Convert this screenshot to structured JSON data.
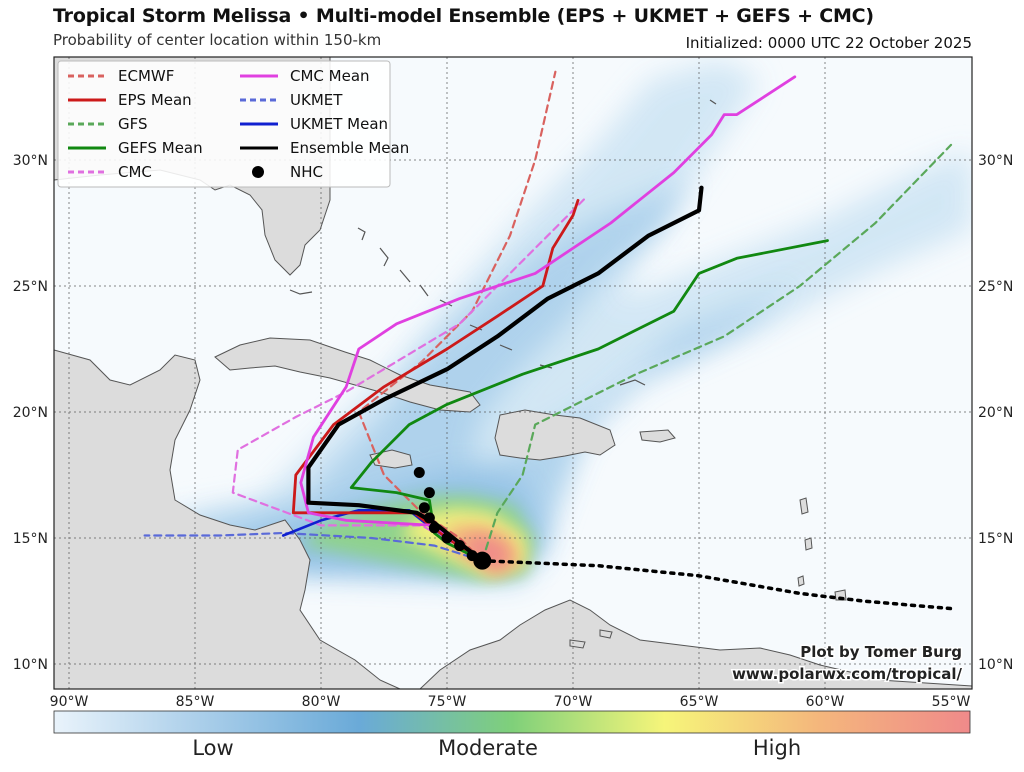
{
  "title": "Tropical Storm Melissa • Multi-model Ensemble (EPS + UKMET + GEFS + CMC)",
  "subtitle": "Probability of center location within 150-km",
  "initialized": "Initialized: 0000 UTC 22 October 2025",
  "credit": {
    "line1": "Plot by Tomer Burg",
    "line2": "www.polarwx.com/tropical/"
  },
  "lon_ticks": [
    "90°W",
    "85°W",
    "80°W",
    "75°W",
    "70°W",
    "65°W",
    "60°W",
    "55°W"
  ],
  "lat_ticks": [
    "30°N",
    "25°N",
    "20°N",
    "15°N",
    "10°N"
  ],
  "colorbar": {
    "labels": [
      "Low",
      "Moderate",
      "High"
    ],
    "stops": [
      "#e9f3fb",
      "#a8cde9",
      "#6aaad8",
      "#7fd07a",
      "#f6f57a",
      "#f4b77c",
      "#f08a8a"
    ]
  },
  "colors": {
    "ocean": "#f6fafd",
    "land": "#dcdcdc",
    "coast": "#555555",
    "prob_low": "#b7d8ef",
    "prob_mid": "#8fd18a",
    "prob_high": "#f3f07c",
    "prob_max": "#f19a8a"
  },
  "legend": [
    {
      "label": "ECMWF",
      "color": "#d9625f",
      "style": "dashed"
    },
    {
      "label": "CMC Mean",
      "color": "#e040e0",
      "style": "solid"
    },
    {
      "label": "EPS Mean",
      "color": "#cc1a1a",
      "style": "solid"
    },
    {
      "label": "UKMET",
      "color": "#5a6ad8",
      "style": "dashed"
    },
    {
      "label": "GFS",
      "color": "#5aa85a",
      "style": "dashed"
    },
    {
      "label": "UKMET Mean",
      "color": "#1020d0",
      "style": "solid"
    },
    {
      "label": "GEFS Mean",
      "color": "#118811",
      "style": "solid"
    },
    {
      "label": "Ensemble Mean",
      "color": "#000000",
      "style": "solid"
    },
    {
      "label": "CMC",
      "color": "#e070e0",
      "style": "dashed"
    },
    {
      "label": "NHC",
      "color": "#000000",
      "style": "dot"
    }
  ],
  "tracks": [
    {
      "name": "ECMWF",
      "color": "#d9625f",
      "style": "dashed",
      "width": 2.2,
      "points": [
        [
          -73.6,
          14.1
        ],
        [
          -74.5,
          15.0
        ],
        [
          -76.0,
          16.0
        ],
        [
          -77.5,
          17.5
        ],
        [
          -78.5,
          20.0
        ],
        [
          -76.0,
          22.0
        ],
        [
          -74.0,
          24.0
        ],
        [
          -72.5,
          27.0
        ],
        [
          -71.5,
          30.0
        ],
        [
          -70.7,
          33.5
        ]
      ]
    },
    {
      "name": "GFS",
      "color": "#5aa85a",
      "style": "dashed",
      "width": 2.2,
      "points": [
        [
          -73.6,
          14.1
        ],
        [
          -73.0,
          16.0
        ],
        [
          -72.0,
          17.5
        ],
        [
          -71.5,
          19.5
        ],
        [
          -69.5,
          20.5
        ],
        [
          -67.5,
          21.5
        ],
        [
          -64.0,
          23.0
        ],
        [
          -61.0,
          25.0
        ],
        [
          -58.0,
          27.5
        ],
        [
          -55.0,
          30.6
        ]
      ]
    },
    {
      "name": "CMC",
      "color": "#e070e0",
      "style": "dashed",
      "width": 2.2,
      "points": [
        [
          -73.6,
          14.1
        ],
        [
          -76.0,
          15.5
        ],
        [
          -80.0,
          15.5
        ],
        [
          -83.5,
          16.8
        ],
        [
          -83.3,
          18.5
        ],
        [
          -81.0,
          19.8
        ],
        [
          -79.0,
          20.8
        ],
        [
          -77.0,
          22.0
        ],
        [
          -74.5,
          23.5
        ],
        [
          -72.0,
          26.0
        ],
        [
          -69.5,
          28.5
        ]
      ]
    },
    {
      "name": "UKMET",
      "color": "#5a6ad8",
      "style": "dashed",
      "width": 2.2,
      "points": [
        [
          -73.6,
          14.1
        ],
        [
          -75.5,
          14.7
        ],
        [
          -78.0,
          15.0
        ],
        [
          -81.5,
          15.2
        ],
        [
          -84.0,
          15.1
        ],
        [
          -87.0,
          15.1
        ]
      ]
    },
    {
      "name": "UKMET Mean",
      "color": "#1020d0",
      "style": "solid",
      "width": 2.6,
      "points": [
        [
          -73.6,
          14.1
        ],
        [
          -75.0,
          15.0
        ],
        [
          -76.0,
          15.7
        ],
        [
          -76.5,
          16.1
        ],
        [
          -78.5,
          16.1
        ],
        [
          -80.0,
          15.7
        ],
        [
          -81.5,
          15.1
        ]
      ]
    },
    {
      "name": "EPS Mean",
      "color": "#cc1a1a",
      "style": "solid",
      "width": 2.8,
      "points": [
        [
          -73.6,
          14.1
        ],
        [
          -75.0,
          15.0
        ],
        [
          -76.3,
          16.0
        ],
        [
          -79.5,
          16.0
        ],
        [
          -81.1,
          16.0
        ],
        [
          -81.0,
          17.5
        ],
        [
          -79.5,
          19.5
        ],
        [
          -77.5,
          21.0
        ],
        [
          -75.0,
          22.5
        ],
        [
          -73.0,
          23.8
        ],
        [
          -71.2,
          25.0
        ],
        [
          -70.8,
          26.5
        ],
        [
          -70.0,
          27.8
        ],
        [
          -69.8,
          28.4
        ]
      ]
    },
    {
      "name": "GEFS Mean",
      "color": "#118811",
      "style": "solid",
      "width": 2.8,
      "points": [
        [
          -73.6,
          14.1
        ],
        [
          -75.0,
          14.8
        ],
        [
          -75.5,
          15.2
        ],
        [
          -75.7,
          16.5
        ],
        [
          -77.0,
          16.8
        ],
        [
          -78.8,
          17.0
        ],
        [
          -78.0,
          18.0
        ],
        [
          -76.5,
          19.5
        ],
        [
          -75.0,
          20.3
        ],
        [
          -72.0,
          21.5
        ],
        [
          -69.0,
          22.5
        ],
        [
          -66.0,
          24.0
        ],
        [
          -65.0,
          25.5
        ],
        [
          -63.5,
          26.1
        ],
        [
          -59.9,
          26.8
        ]
      ]
    },
    {
      "name": "CMC Mean",
      "color": "#e040e0",
      "style": "solid",
      "width": 2.8,
      "points": [
        [
          -73.6,
          14.1
        ],
        [
          -75.5,
          15.5
        ],
        [
          -79.0,
          15.7
        ],
        [
          -80.5,
          16.0
        ],
        [
          -80.8,
          17.2
        ],
        [
          -80.3,
          19.0
        ],
        [
          -79.0,
          21.0
        ],
        [
          -78.5,
          22.5
        ],
        [
          -77.0,
          23.5
        ],
        [
          -74.5,
          24.5
        ],
        [
          -71.5,
          25.5
        ],
        [
          -68.5,
          27.5
        ],
        [
          -66.0,
          29.5
        ],
        [
          -64.5,
          31.0
        ],
        [
          -64.0,
          31.8
        ],
        [
          -63.5,
          31.8
        ],
        [
          -61.2,
          33.3
        ]
      ]
    },
    {
      "name": "Ensemble Mean",
      "color": "#000000",
      "style": "solid",
      "width": 4.2,
      "points": [
        [
          -73.6,
          14.1
        ],
        [
          -74.5,
          14.8
        ],
        [
          -75.5,
          15.6
        ],
        [
          -76.2,
          16.0
        ],
        [
          -78.5,
          16.3
        ],
        [
          -80.5,
          16.4
        ],
        [
          -80.5,
          17.8
        ],
        [
          -79.3,
          19.5
        ],
        [
          -77.5,
          20.5
        ],
        [
          -75.0,
          21.7
        ],
        [
          -73.0,
          23.0
        ],
        [
          -71.0,
          24.5
        ],
        [
          -69.0,
          25.5
        ],
        [
          -67.0,
          27.0
        ],
        [
          -65.0,
          28.0
        ],
        [
          -64.9,
          28.9
        ]
      ]
    }
  ],
  "nhc_points": [
    [
      -73.6,
      14.1
    ],
    [
      -74.0,
      14.3
    ],
    [
      -74.5,
      14.7
    ],
    [
      -75.0,
      15.0
    ],
    [
      -75.5,
      15.4
    ],
    [
      -75.7,
      15.8
    ],
    [
      -75.9,
      16.2
    ],
    [
      -75.7,
      16.8
    ],
    [
      -76.1,
      17.6
    ]
  ],
  "nhc_extension": [
    [
      -73.6,
      14.1
    ],
    [
      -69.0,
      13.9
    ],
    [
      -65.0,
      13.5
    ],
    [
      -61.0,
      12.8
    ],
    [
      -58.5,
      12.5
    ],
    [
      -55.0,
      12.2
    ]
  ]
}
